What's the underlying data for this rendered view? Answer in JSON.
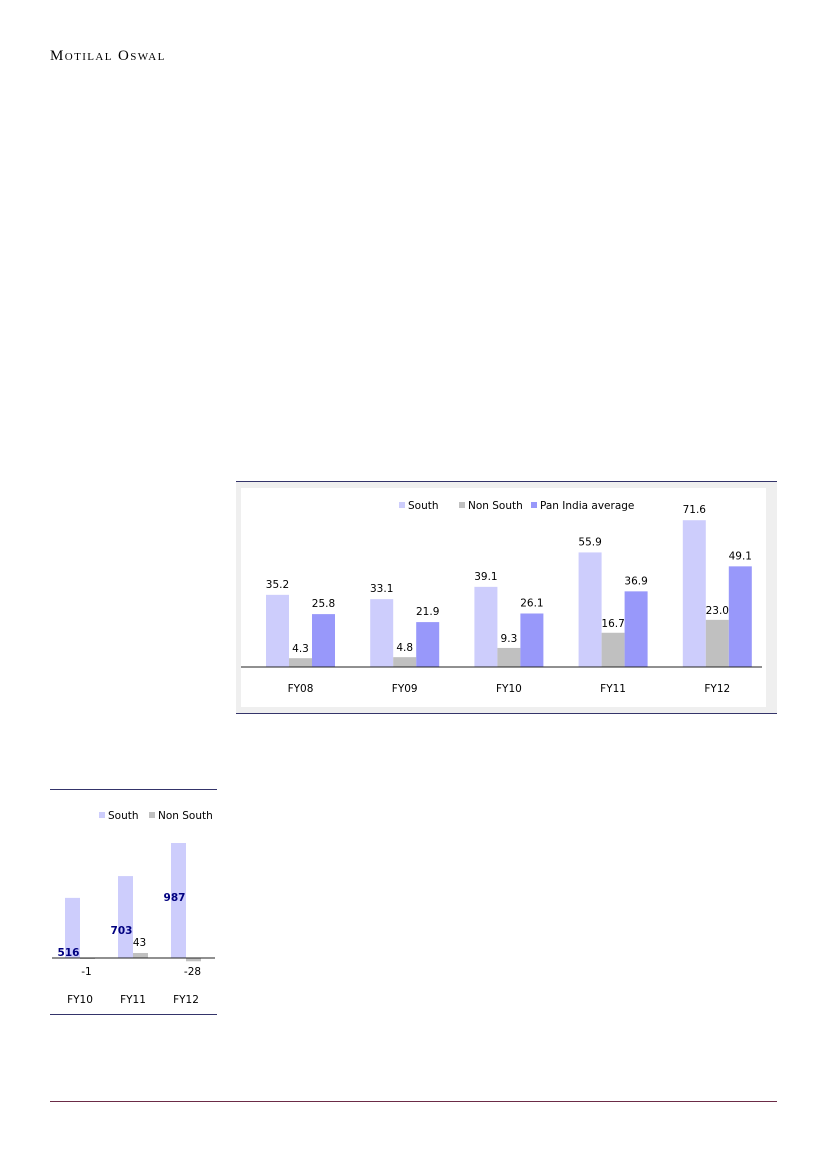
{
  "header": {
    "brand": "Motilal Oswal"
  },
  "colors": {
    "south": "#cdcdfc",
    "non_south": "#c0c0c0",
    "pan_india": "#9898fa",
    "frame": "#34346a",
    "label_blue": "#000080"
  },
  "chart_data": [
    {
      "type": "bar",
      "categories": [
        "FY08",
        "FY09",
        "FY10",
        "FY11",
        "FY12"
      ],
      "series": [
        {
          "name": "South",
          "values": [
            35.2,
            33.1,
            39.1,
            55.9,
            71.6
          ]
        },
        {
          "name": "Non South",
          "values": [
            4.3,
            4.8,
            9.3,
            16.7,
            23.0
          ]
        },
        {
          "name": "Pan India average",
          "values": [
            25.8,
            21.9,
            26.1,
            36.9,
            49.1
          ]
        }
      ],
      "data_labels": [
        [
          "35.2",
          "33.1",
          "39.1",
          "55.9",
          "71.6"
        ],
        [
          "4.3",
          "4.8",
          "9.3",
          "16.7",
          "23.0"
        ],
        [
          "25.8",
          "21.9",
          "26.1",
          "36.9",
          "49.1"
        ]
      ],
      "legend": "top",
      "ylim": [
        0,
        80
      ],
      "grid": false
    },
    {
      "type": "bar",
      "categories": [
        "FY10",
        "FY11",
        "FY12"
      ],
      "series": [
        {
          "name": "South",
          "values": [
            516,
            703,
            987
          ]
        },
        {
          "name": "Non South",
          "values": [
            -1,
            43,
            -28
          ]
        }
      ],
      "data_labels": [
        [
          "516",
          "703",
          "987"
        ],
        [
          "-1",
          "43",
          "-28"
        ]
      ],
      "legend": "top",
      "ylim": [
        -50,
        1050
      ],
      "grid": false
    }
  ]
}
